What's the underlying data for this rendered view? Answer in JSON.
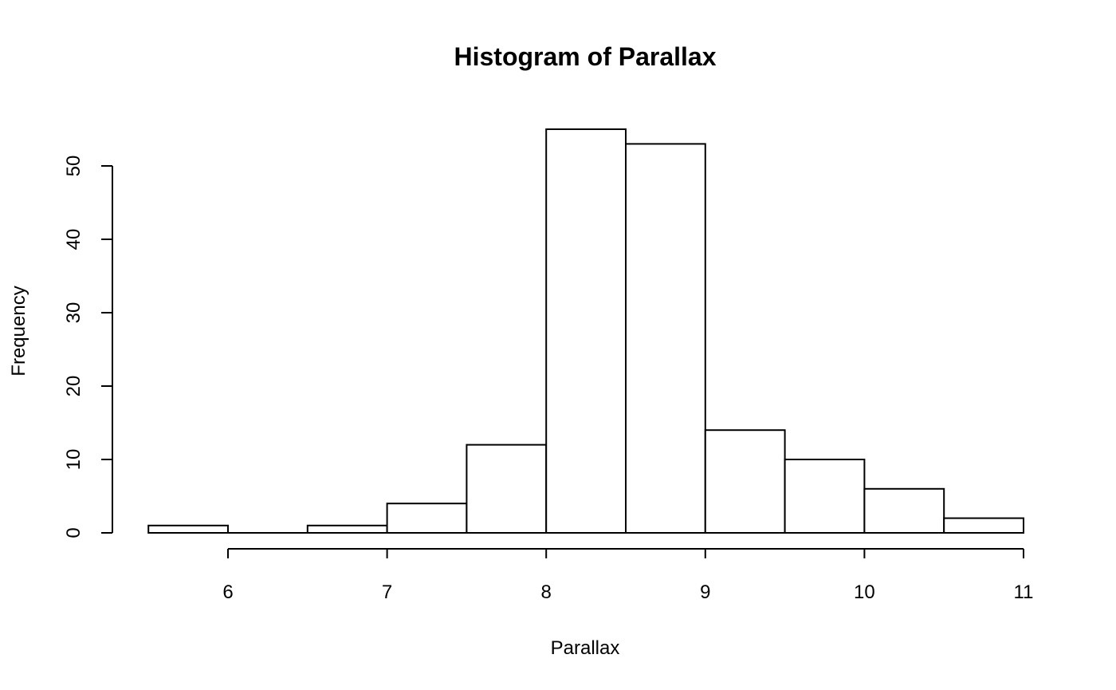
{
  "chart_data": {
    "type": "bar",
    "title": "Histogram of Parallax",
    "xlabel": "Parallax",
    "ylabel": "Frequency",
    "bins": [
      {
        "start": 5.5,
        "end": 6.0,
        "count": 1
      },
      {
        "start": 6.0,
        "end": 6.5,
        "count": 0
      },
      {
        "start": 6.5,
        "end": 7.0,
        "count": 1
      },
      {
        "start": 7.0,
        "end": 7.5,
        "count": 4
      },
      {
        "start": 7.5,
        "end": 8.0,
        "count": 12
      },
      {
        "start": 8.0,
        "end": 8.5,
        "count": 55
      },
      {
        "start": 8.5,
        "end": 9.0,
        "count": 53
      },
      {
        "start": 9.0,
        "end": 9.5,
        "count": 14
      },
      {
        "start": 9.5,
        "end": 10.0,
        "count": 10
      },
      {
        "start": 10.0,
        "end": 10.5,
        "count": 6
      },
      {
        "start": 10.5,
        "end": 11.0,
        "count": 2
      }
    ],
    "x_ticks": [
      6,
      7,
      8,
      9,
      10,
      11
    ],
    "y_ticks": [
      0,
      10,
      20,
      30,
      40,
      50
    ],
    "xlim": [
      5.5,
      11
    ],
    "ylim": [
      0,
      55
    ],
    "grid": false,
    "bar_fill": "#ffffff",
    "bar_stroke": "#000000"
  }
}
